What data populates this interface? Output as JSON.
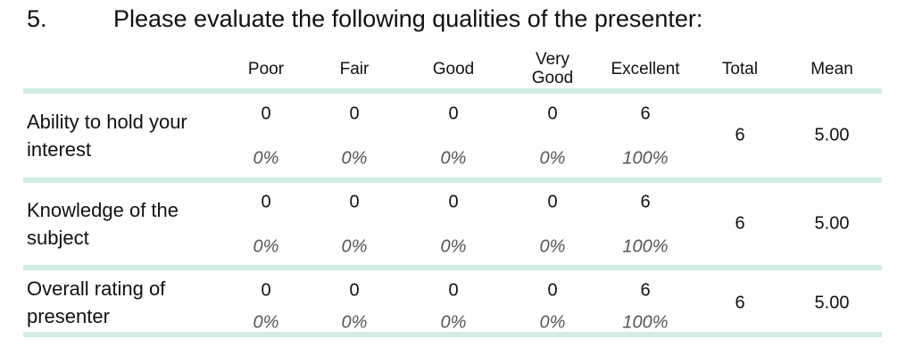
{
  "question": {
    "number": "5.",
    "text": "Please evaluate the following qualities of the presenter:"
  },
  "table": {
    "columns": [
      "Poor",
      "Fair",
      "Good",
      "Very Good",
      "Excellent",
      "Total",
      "Mean"
    ],
    "rows": [
      {
        "label": "Ability to hold your interest",
        "counts": [
          0,
          0,
          0,
          0,
          6
        ],
        "percents": [
          "0%",
          "0%",
          "0%",
          "0%",
          "100%"
        ],
        "total": 6,
        "mean": "5.00"
      },
      {
        "label": "Knowledge of the subject",
        "counts": [
          0,
          0,
          0,
          0,
          6
        ],
        "percents": [
          "0%",
          "0%",
          "0%",
          "0%",
          "100%"
        ],
        "total": 6,
        "mean": "5.00"
      },
      {
        "label": "Overall rating of presenter",
        "counts": [
          0,
          0,
          0,
          0,
          6
        ],
        "percents": [
          "0%",
          "0%",
          "0%",
          "0%",
          "100%"
        ],
        "total": 6,
        "mean": "5.00"
      }
    ]
  }
}
